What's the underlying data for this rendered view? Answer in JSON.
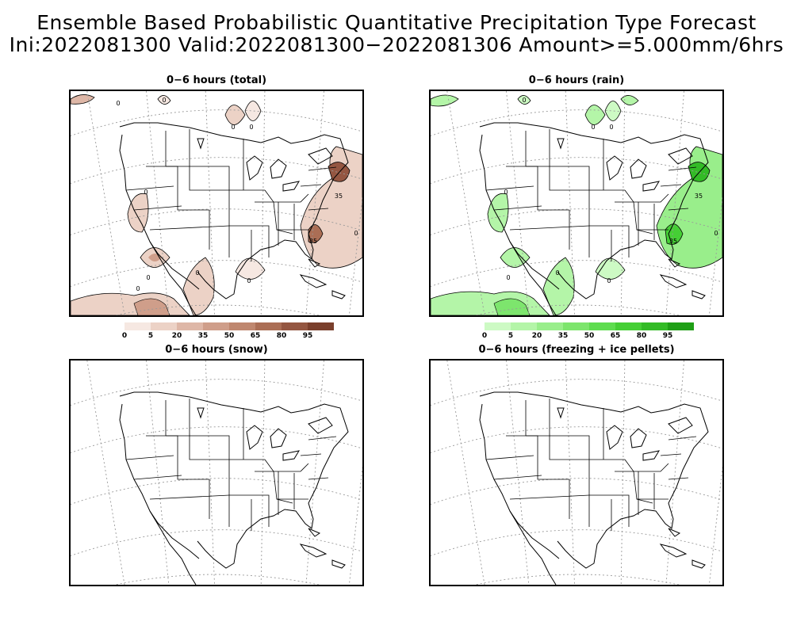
{
  "figure": {
    "title_line1": "Ensemble Based Probabilistic Quantitative Precipitation Type Forecast",
    "title_line2": "Ini:2022081300 Valid:2022081300−2022081306 Amount>=5.000mm/6hrs"
  },
  "panels": [
    {
      "id": "total",
      "title": "0−6 hours (total)",
      "colorbar": "brown",
      "contour_labels": [
        "0",
        "0",
        "0",
        "0",
        "0",
        "0",
        "0",
        "0",
        "0",
        "35",
        "35",
        "0"
      ]
    },
    {
      "id": "rain",
      "title": "0−6 hours (rain)",
      "colorbar": "green",
      "contour_labels": [
        "0",
        "0",
        "0",
        "0",
        "0",
        "0",
        "0",
        "35",
        "35",
        "0"
      ]
    },
    {
      "id": "snow",
      "title": "0−6 hours (snow)",
      "colorbar": null,
      "contour_labels": []
    },
    {
      "id": "fzra",
      "title": "0−6 hours (freezing + ice pellets)",
      "colorbar": null,
      "contour_labels": []
    }
  ],
  "colorbars": {
    "brown": {
      "ticks": [
        "0",
        "5",
        "20",
        "35",
        "50",
        "65",
        "80",
        "95"
      ],
      "colors": [
        "#f6e8e2",
        "#ecd2c6",
        "#deb7a7",
        "#cf9e8a",
        "#bf876f",
        "#ab6e55",
        "#945641",
        "#7a3f2c"
      ]
    },
    "green": {
      "ticks": [
        "0",
        "5",
        "20",
        "35",
        "50",
        "65",
        "80",
        "95"
      ],
      "colors": [
        "#cdfac4",
        "#b4f5a8",
        "#99ee8b",
        "#7de56d",
        "#5edc4f",
        "#45cf35",
        "#33bb26",
        "#1f9f16"
      ]
    }
  }
}
